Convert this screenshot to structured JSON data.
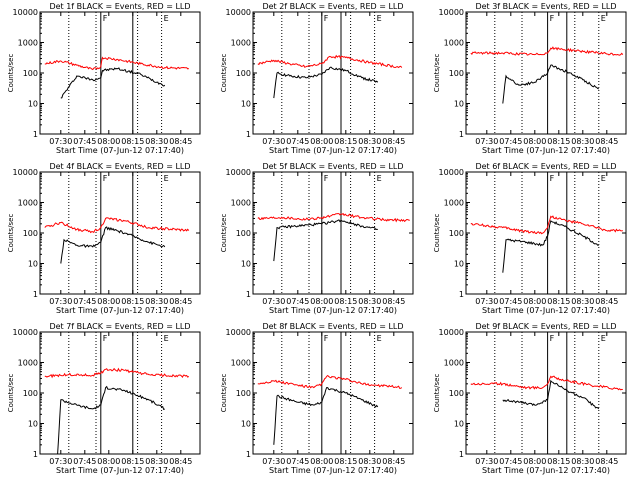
{
  "chart_data": [
    {
      "type": "line",
      "title": "Det 1f BLACK = Events, RED = LLD",
      "xlabel": "Start Time (07-Jun-12 07:17:40)",
      "ylabel": "Counts/sec",
      "ylim": [
        1,
        10000
      ],
      "y_scale": "log",
      "y_ticks": [
        "1",
        "10",
        "100",
        "1000",
        "10000"
      ],
      "x_ticks": [
        "07:30",
        "07:45",
        "08:00",
        "08:15",
        "08:30",
        "08:45"
      ],
      "xlim": [
        "07:17",
        "08:57"
      ],
      "markers": {
        "solid": [
          "07:55",
          "08:15"
        ],
        "dotted": [
          "07:35",
          "07:52",
          "08:18",
          "08:33"
        ],
        "bracket_labels": [
          "F",
          "E"
        ]
      },
      "series": [
        {
          "name": "Events",
          "color": "#000000",
          "x": [
            "07:30",
            "07:40",
            "07:50",
            "07:55",
            "07:56",
            "08:05",
            "08:20",
            "08:30",
            "08:35"
          ],
          "y": [
            15,
            80,
            60,
            70,
            120,
            140,
            90,
            50,
            40
          ]
        },
        {
          "name": "LLD",
          "color": "#ff0000",
          "x": [
            "07:20",
            "07:30",
            "07:40",
            "07:50",
            "07:55",
            "07:56",
            "08:05",
            "08:20",
            "08:35",
            "08:50"
          ],
          "y": [
            200,
            250,
            180,
            130,
            160,
            320,
            280,
            200,
            150,
            140
          ]
        }
      ]
    },
    {
      "type": "line",
      "title": "Det 2f BLACK = Events, RED = LLD",
      "xlabel": "Start Time (07-Jun-12 07:17:40)",
      "ylabel": "Counts/sec",
      "ylim": [
        1,
        10000
      ],
      "y_scale": "log",
      "y_ticks": [
        "1",
        "10",
        "100",
        "1000",
        "10000"
      ],
      "x_ticks": [
        "07:30",
        "07:45",
        "08:00",
        "08:15",
        "08:30",
        "08:45"
      ],
      "xlim": [
        "07:17",
        "08:57"
      ],
      "markers": {
        "solid": [
          "08:00",
          "08:12"
        ],
        "dotted": [
          "07:35",
          "07:52",
          "08:18",
          "08:33"
        ],
        "bracket_labels": [
          "F",
          "E"
        ]
      },
      "series": [
        {
          "name": "Events",
          "color": "#000000",
          "x": [
            "07:30",
            "07:32",
            "07:40",
            "07:50",
            "08:00",
            "08:05",
            "08:15",
            "08:25",
            "08:35"
          ],
          "y": [
            15,
            100,
            80,
            70,
            90,
            150,
            120,
            70,
            50
          ]
        },
        {
          "name": "LLD",
          "color": "#ff0000",
          "x": [
            "07:20",
            "07:30",
            "07:40",
            "07:50",
            "08:00",
            "08:05",
            "08:15",
            "08:30",
            "08:50"
          ],
          "y": [
            200,
            260,
            200,
            160,
            200,
            350,
            320,
            220,
            150
          ]
        }
      ]
    },
    {
      "type": "line",
      "title": "Det 3f BLACK = Events, RED = LLD",
      "xlabel": "Start Time (07-Jun-12 07:17:40)",
      "ylabel": "Counts/sec",
      "ylim": [
        1,
        10000
      ],
      "y_scale": "log",
      "y_ticks": [
        "1",
        "10",
        "100",
        "1000",
        "10000"
      ],
      "x_ticks": [
        "07:30",
        "07:45",
        "08:00",
        "08:15",
        "08:30",
        "08:45"
      ],
      "xlim": [
        "07:17",
        "08:57"
      ],
      "markers": {
        "solid": [
          "08:08",
          "08:20"
        ],
        "dotted": [
          "07:35",
          "07:52",
          "08:25",
          "08:40"
        ],
        "bracket_labels": [
          "F",
          "E"
        ]
      },
      "series": [
        {
          "name": "Events",
          "color": "#000000",
          "x": [
            "07:40",
            "07:42",
            "07:50",
            "08:00",
            "08:08",
            "08:10",
            "08:20",
            "08:30",
            "08:40"
          ],
          "y": [
            10,
            80,
            40,
            50,
            100,
            180,
            110,
            60,
            30
          ]
        },
        {
          "name": "LLD",
          "color": "#ff0000",
          "x": [
            "07:20",
            "07:40",
            "08:00",
            "08:08",
            "08:10",
            "08:25",
            "08:45",
            "08:55"
          ],
          "y": [
            450,
            450,
            400,
            450,
            650,
            550,
            420,
            400
          ]
        }
      ]
    },
    {
      "type": "line",
      "title": "Det 4f BLACK = Events, RED = LLD",
      "xlabel": "Start Time (07-Jun-12 07:17:40)",
      "ylabel": "Counts/sec",
      "ylim": [
        1,
        10000
      ],
      "y_scale": "log",
      "y_ticks": [
        "1",
        "10",
        "100",
        "1000",
        "10000"
      ],
      "x_ticks": [
        "07:30",
        "07:45",
        "08:00",
        "08:15",
        "08:30",
        "08:45"
      ],
      "xlim": [
        "07:17",
        "08:57"
      ],
      "markers": {
        "solid": [
          "07:55",
          "08:15"
        ],
        "dotted": [
          "07:35",
          "07:52",
          "08:18",
          "08:33"
        ],
        "bracket_labels": [
          "F",
          "E"
        ]
      },
      "series": [
        {
          "name": "Events",
          "color": "#000000",
          "x": [
            "07:30",
            "07:32",
            "07:40",
            "07:50",
            "07:55",
            "07:58",
            "08:10",
            "08:25",
            "08:35"
          ],
          "y": [
            10,
            60,
            40,
            35,
            50,
            150,
            100,
            50,
            35
          ]
        },
        {
          "name": "LLD",
          "color": "#ff0000",
          "x": [
            "07:20",
            "07:30",
            "07:40",
            "07:50",
            "07:55",
            "07:58",
            "08:10",
            "08:25",
            "08:50"
          ],
          "y": [
            150,
            220,
            130,
            110,
            150,
            300,
            250,
            150,
            120
          ]
        }
      ]
    },
    {
      "type": "line",
      "title": "Det 5f BLACK = Events, RED = LLD",
      "xlabel": "Start Time (07-Jun-12 07:17:40)",
      "ylabel": "Counts/sec",
      "ylim": [
        1,
        10000
      ],
      "y_scale": "log",
      "y_ticks": [
        "1",
        "10",
        "100",
        "1000",
        "10000"
      ],
      "x_ticks": [
        "07:30",
        "07:45",
        "08:00",
        "08:15",
        "08:30",
        "08:45"
      ],
      "xlim": [
        "07:17",
        "08:57"
      ],
      "markers": {
        "solid": [
          "08:00",
          "08:12"
        ],
        "dotted": [
          "07:35",
          "07:52",
          "08:18",
          "08:33"
        ],
        "bracket_labels": [
          "F",
          "E"
        ]
      },
      "series": [
        {
          "name": "Events",
          "color": "#000000",
          "x": [
            "07:30",
            "07:32",
            "07:45",
            "08:00",
            "08:12",
            "08:25",
            "08:35"
          ],
          "y": [
            12,
            150,
            170,
            200,
            260,
            170,
            130
          ]
        },
        {
          "name": "LLD",
          "color": "#ff0000",
          "x": [
            "07:20",
            "07:35",
            "07:50",
            "08:00",
            "08:12",
            "08:25",
            "08:40",
            "08:55"
          ],
          "y": [
            300,
            330,
            280,
            320,
            420,
            320,
            270,
            260
          ]
        }
      ]
    },
    {
      "type": "line",
      "title": "Det 6f BLACK = Events, RED = LLD",
      "xlabel": "Start Time (07-Jun-12 07:17:40)",
      "ylabel": "Counts/sec",
      "ylim": [
        1,
        10000
      ],
      "y_scale": "log",
      "y_ticks": [
        "1",
        "10",
        "100",
        "1000",
        "10000"
      ],
      "x_ticks": [
        "07:30",
        "07:45",
        "08:00",
        "08:15",
        "08:30",
        "08:45"
      ],
      "xlim": [
        "07:17",
        "08:57"
      ],
      "markers": {
        "solid": [
          "08:08",
          "08:20"
        ],
        "dotted": [
          "07:35",
          "07:52",
          "08:25",
          "08:40"
        ],
        "bracket_labels": [
          "F",
          "E"
        ]
      },
      "series": [
        {
          "name": "Events",
          "color": "#000000",
          "x": [
            "07:40",
            "07:42",
            "07:55",
            "08:05",
            "08:08",
            "08:10",
            "08:20",
            "08:30",
            "08:40"
          ],
          "y": [
            5,
            60,
            50,
            40,
            80,
            250,
            150,
            80,
            40
          ]
        },
        {
          "name": "LLD",
          "color": "#ff0000",
          "x": [
            "07:20",
            "07:40",
            "07:55",
            "08:05",
            "08:08",
            "08:10",
            "08:20",
            "08:30",
            "08:45",
            "08:55"
          ],
          "y": [
            200,
            150,
            110,
            100,
            150,
            350,
            250,
            200,
            120,
            120
          ]
        }
      ]
    },
    {
      "type": "line",
      "title": "Det 7f BLACK = Events, RED = LLD",
      "xlabel": "Start Time (07-Jun-12 07:17:40)",
      "ylabel": "Counts/sec",
      "ylim": [
        1,
        10000
      ],
      "y_scale": "log",
      "y_ticks": [
        "1",
        "10",
        "100",
        "1000",
        "10000"
      ],
      "x_ticks": [
        "07:30",
        "07:45",
        "08:00",
        "08:15",
        "08:30",
        "08:45"
      ],
      "xlim": [
        "07:17",
        "08:57"
      ],
      "markers": {
        "solid": [
          "07:55",
          "08:15"
        ],
        "dotted": [
          "07:35",
          "07:52",
          "08:18",
          "08:33"
        ],
        "bracket_labels": [
          "F",
          "E"
        ]
      },
      "series": [
        {
          "name": "Events",
          "color": "#000000",
          "x": [
            "07:28",
            "07:30",
            "07:40",
            "07:50",
            "07:55",
            "07:58",
            "08:10",
            "08:25",
            "08:35"
          ],
          "y": [
            1,
            60,
            40,
            30,
            40,
            150,
            120,
            60,
            30
          ]
        },
        {
          "name": "LLD",
          "color": "#ff0000",
          "x": [
            "07:20",
            "07:35",
            "07:50",
            "07:55",
            "07:58",
            "08:10",
            "08:25",
            "08:50"
          ],
          "y": [
            350,
            400,
            380,
            450,
            600,
            550,
            400,
            350
          ]
        }
      ]
    },
    {
      "type": "line",
      "title": "Det 8f BLACK = Events, RED = LLD",
      "xlabel": "Start Time (07-Jun-12 07:17:40)",
      "ylabel": "Counts/sec",
      "ylim": [
        1,
        10000
      ],
      "y_scale": "log",
      "y_ticks": [
        "1",
        "10",
        "100",
        "1000",
        "10000"
      ],
      "x_ticks": [
        "07:30",
        "07:45",
        "08:00",
        "08:15",
        "08:30",
        "08:45"
      ],
      "xlim": [
        "07:17",
        "08:57"
      ],
      "markers": {
        "solid": [
          "08:00",
          "08:12"
        ],
        "dotted": [
          "07:35",
          "07:52",
          "08:18",
          "08:33"
        ],
        "bracket_labels": [
          "F",
          "E"
        ]
      },
      "series": [
        {
          "name": "Events",
          "color": "#000000",
          "x": [
            "07:30",
            "07:32",
            "07:45",
            "07:55",
            "08:00",
            "08:03",
            "08:15",
            "08:25",
            "08:35"
          ],
          "y": [
            2,
            80,
            50,
            40,
            50,
            150,
            100,
            60,
            35
          ]
        },
        {
          "name": "LLD",
          "color": "#ff0000",
          "x": [
            "07:20",
            "07:30",
            "07:45",
            "07:55",
            "08:00",
            "08:03",
            "08:15",
            "08:25",
            "08:50"
          ],
          "y": [
            200,
            250,
            180,
            150,
            200,
            350,
            280,
            200,
            150
          ]
        }
      ]
    },
    {
      "type": "line",
      "title": "Det 9f BLACK = Events, RED = LLD",
      "xlabel": "Start Time (07-Jun-12 07:17:40)",
      "ylabel": "Counts/sec",
      "ylim": [
        1,
        10000
      ],
      "y_scale": "log",
      "y_ticks": [
        "1",
        "10",
        "100",
        "1000",
        "10000"
      ],
      "x_ticks": [
        "07:30",
        "07:45",
        "08:00",
        "08:15",
        "08:30",
        "08:45"
      ],
      "xlim": [
        "07:17",
        "08:57"
      ],
      "markers": {
        "solid": [
          "08:08",
          "08:20"
        ],
        "dotted": [
          "07:35",
          "07:52",
          "08:25",
          "08:40"
        ],
        "bracket_labels": [
          "F",
          "E"
        ]
      },
      "series": [
        {
          "name": "Events",
          "color": "#000000",
          "x": [
            "07:40",
            "07:50",
            "08:00",
            "08:08",
            "08:10",
            "08:20",
            "08:30",
            "08:40"
          ],
          "y": [
            60,
            50,
            40,
            60,
            250,
            120,
            70,
            30
          ]
        },
        {
          "name": "LLD",
          "color": "#ff0000",
          "x": [
            "07:20",
            "07:40",
            "07:55",
            "08:05",
            "08:08",
            "08:10",
            "08:20",
            "08:35",
            "08:55"
          ],
          "y": [
            200,
            200,
            150,
            150,
            200,
            350,
            250,
            180,
            130
          ]
        }
      ]
    }
  ]
}
